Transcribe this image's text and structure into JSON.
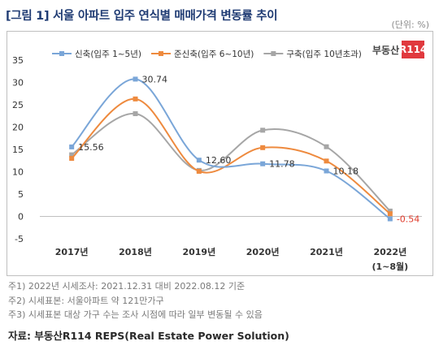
{
  "title": "[그림 1] 서울 아파트 입주 연식별 매매가격 변동률 추이",
  "unit": "(단위: %)",
  "logo": {
    "text": "부동산",
    "badge": "R114"
  },
  "chart_data": {
    "type": "line",
    "categories": [
      "2017년",
      "2018년",
      "2019년",
      "2020년",
      "2021년",
      "2022년"
    ],
    "category_sublabels": [
      "",
      "",
      "",
      "",
      "",
      "(1~8월)"
    ],
    "ylim": [
      -5,
      35
    ],
    "yticks": [
      -5,
      0,
      5,
      10,
      15,
      20,
      25,
      30,
      35
    ],
    "legend_position": "top",
    "grid": false,
    "series": [
      {
        "name": "신축(입주 1~5년)",
        "color": "#7aa6d8",
        "values": [
          15.56,
          30.74,
          12.6,
          11.78,
          10.18,
          -0.54
        ],
        "labels": [
          "15.56",
          "30.74",
          "12.60",
          "11.78",
          "10.18",
          "-0.54"
        ]
      },
      {
        "name": "준신축(입주 6~10년)",
        "color": "#ee8a3e",
        "values": [
          13.0,
          26.3,
          10.1,
          15.4,
          12.4,
          0.6
        ],
        "labels": [
          "",
          "",
          "",
          "",
          "",
          ""
        ]
      },
      {
        "name": "구축(입주 10년초과)",
        "color": "#a6a6a6",
        "values": [
          13.8,
          23.0,
          10.3,
          19.3,
          15.6,
          1.2
        ],
        "labels": [
          "",
          "",
          "",
          "",
          "",
          ""
        ]
      }
    ],
    "label_colors": [
      "#333333",
      "#333333",
      "#333333",
      "#333333",
      "#333333",
      "#e03a2a"
    ]
  },
  "notes": [
    "주1) 2022년 시세조사: 2021.12.31 대비 2022.08.12 기준",
    "주2) 시세표본: 서울아파트 약 121만가구",
    "주3) 시세표본 대상 가구 수는 조사 시점에 따라 일부 변동될 수 있음"
  ],
  "source": "자료: 부동산R114 REPS(Real Estate Power Solution)"
}
